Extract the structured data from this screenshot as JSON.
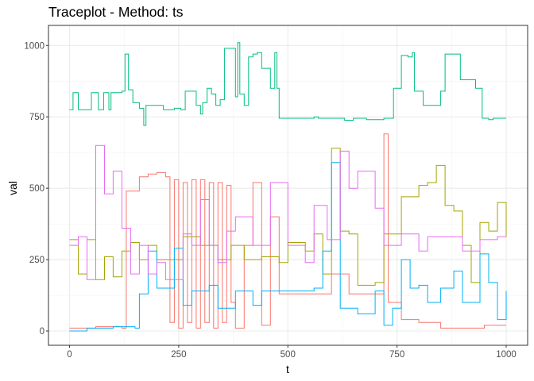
{
  "chart_data": {
    "type": "line",
    "title": "Traceplot - Method: ts",
    "xlabel": "t",
    "ylabel": "val",
    "xlim": [
      -45,
      1045
    ],
    "ylim": [
      -35,
      1060
    ],
    "xticks": [
      0,
      250,
      500,
      750,
      1000
    ],
    "yticks": [
      0,
      250,
      500,
      750,
      1000
    ],
    "grid": true,
    "legend": "none",
    "step": true,
    "series": [
      {
        "color": "#F8766D",
        "points": [
          [
            0,
            10
          ],
          [
            60,
            15
          ],
          [
            120,
            10
          ],
          [
            130,
            490
          ],
          [
            160,
            540
          ],
          [
            180,
            550
          ],
          [
            200,
            555
          ],
          [
            220,
            540
          ],
          [
            230,
            30
          ],
          [
            240,
            530
          ],
          [
            250,
            10
          ],
          [
            260,
            520
          ],
          [
            270,
            30
          ],
          [
            280,
            530
          ],
          [
            290,
            10
          ],
          [
            300,
            530
          ],
          [
            310,
            30
          ],
          [
            320,
            520
          ],
          [
            330,
            10
          ],
          [
            340,
            520
          ],
          [
            350,
            30
          ],
          [
            360,
            510
          ],
          [
            370,
            100
          ],
          [
            380,
            10
          ],
          [
            400,
            300
          ],
          [
            420,
            520
          ],
          [
            440,
            20
          ],
          [
            460,
            400
          ],
          [
            480,
            130
          ],
          [
            520,
            130
          ],
          [
            560,
            130
          ],
          [
            600,
            200
          ],
          [
            640,
            130
          ],
          [
            700,
            130
          ],
          [
            720,
            690
          ],
          [
            730,
            100
          ],
          [
            760,
            40
          ],
          [
            800,
            30
          ],
          [
            850,
            10
          ],
          [
            900,
            10
          ],
          [
            950,
            20
          ],
          [
            1000,
            20
          ]
        ]
      },
      {
        "color": "#A3A500",
        "points": [
          [
            0,
            320
          ],
          [
            20,
            200
          ],
          [
            40,
            320
          ],
          [
            60,
            180
          ],
          [
            80,
            260
          ],
          [
            100,
            190
          ],
          [
            120,
            280
          ],
          [
            140,
            310
          ],
          [
            160,
            250
          ],
          [
            180,
            300
          ],
          [
            200,
            250
          ],
          [
            260,
            330
          ],
          [
            300,
            300
          ],
          [
            340,
            250
          ],
          [
            370,
            300
          ],
          [
            400,
            250
          ],
          [
            440,
            260
          ],
          [
            480,
            240
          ],
          [
            500,
            310
          ],
          [
            540,
            280
          ],
          [
            560,
            340
          ],
          [
            580,
            200
          ],
          [
            600,
            640
          ],
          [
            620,
            350
          ],
          [
            640,
            340
          ],
          [
            660,
            160
          ],
          [
            700,
            170
          ],
          [
            720,
            340
          ],
          [
            760,
            470
          ],
          [
            800,
            510
          ],
          [
            820,
            520
          ],
          [
            840,
            580
          ],
          [
            860,
            440
          ],
          [
            880,
            420
          ],
          [
            900,
            300
          ],
          [
            920,
            170
          ],
          [
            940,
            380
          ],
          [
            960,
            350
          ],
          [
            980,
            450
          ],
          [
            1000,
            330
          ]
        ]
      },
      {
        "color": "#00BF7D",
        "points": [
          [
            0,
            775
          ],
          [
            8,
            835
          ],
          [
            20,
            775
          ],
          [
            38,
            775
          ],
          [
            50,
            835
          ],
          [
            66,
            775
          ],
          [
            78,
            835
          ],
          [
            90,
            775
          ],
          [
            95,
            835
          ],
          [
            110,
            835
          ],
          [
            120,
            840
          ],
          [
            127,
            970
          ],
          [
            135,
            845
          ],
          [
            145,
            800
          ],
          [
            160,
            780
          ],
          [
            170,
            720
          ],
          [
            175,
            790
          ],
          [
            190,
            790
          ],
          [
            215,
            775
          ],
          [
            240,
            780
          ],
          [
            255,
            775
          ],
          [
            265,
            840
          ],
          [
            280,
            840
          ],
          [
            290,
            790
          ],
          [
            300,
            760
          ],
          [
            305,
            800
          ],
          [
            315,
            850
          ],
          [
            325,
            830
          ],
          [
            335,
            790
          ],
          [
            345,
            810
          ],
          [
            355,
            990
          ],
          [
            370,
            990
          ],
          [
            380,
            820
          ],
          [
            385,
            1010
          ],
          [
            390,
            830
          ],
          [
            400,
            790
          ],
          [
            410,
            960
          ],
          [
            420,
            970
          ],
          [
            430,
            975
          ],
          [
            440,
            920
          ],
          [
            450,
            920
          ],
          [
            460,
            850
          ],
          [
            470,
            975
          ],
          [
            475,
            850
          ],
          [
            480,
            745
          ],
          [
            510,
            745
          ],
          [
            550,
            745
          ],
          [
            560,
            750
          ],
          [
            570,
            745
          ],
          [
            615,
            745
          ],
          [
            630,
            738
          ],
          [
            650,
            745
          ],
          [
            680,
            740
          ],
          [
            720,
            745
          ],
          [
            742,
            850
          ],
          [
            760,
            965
          ],
          [
            775,
            960
          ],
          [
            785,
            975
          ],
          [
            790,
            840
          ],
          [
            805,
            840
          ],
          [
            810,
            790
          ],
          [
            840,
            790
          ],
          [
            850,
            840
          ],
          [
            860,
            970
          ],
          [
            880,
            970
          ],
          [
            895,
            880
          ],
          [
            915,
            880
          ],
          [
            930,
            850
          ],
          [
            945,
            745
          ],
          [
            960,
            740
          ],
          [
            970,
            745
          ],
          [
            1000,
            745
          ]
        ]
      },
      {
        "color": "#00B0F6",
        "points": [
          [
            0,
            0
          ],
          [
            40,
            10
          ],
          [
            100,
            15
          ],
          [
            150,
            10
          ],
          [
            160,
            130
          ],
          [
            180,
            280
          ],
          [
            200,
            150
          ],
          [
            220,
            150
          ],
          [
            240,
            290
          ],
          [
            260,
            90
          ],
          [
            280,
            140
          ],
          [
            300,
            140
          ],
          [
            320,
            160
          ],
          [
            340,
            80
          ],
          [
            380,
            140
          ],
          [
            420,
            90
          ],
          [
            440,
            140
          ],
          [
            500,
            140
          ],
          [
            560,
            150
          ],
          [
            580,
            280
          ],
          [
            600,
            590
          ],
          [
            620,
            80
          ],
          [
            660,
            60
          ],
          [
            700,
            140
          ],
          [
            720,
            20
          ],
          [
            740,
            80
          ],
          [
            760,
            250
          ],
          [
            780,
            150
          ],
          [
            800,
            160
          ],
          [
            820,
            100
          ],
          [
            850,
            150
          ],
          [
            880,
            210
          ],
          [
            900,
            100
          ],
          [
            940,
            270
          ],
          [
            960,
            170
          ],
          [
            980,
            40
          ],
          [
            1000,
            140
          ]
        ]
      },
      {
        "color": "#E76BF3",
        "points": [
          [
            0,
            300
          ],
          [
            20,
            330
          ],
          [
            40,
            180
          ],
          [
            60,
            650
          ],
          [
            80,
            480
          ],
          [
            100,
            560
          ],
          [
            120,
            360
          ],
          [
            140,
            200
          ],
          [
            160,
            300
          ],
          [
            180,
            200
          ],
          [
            200,
            240
          ],
          [
            220,
            180
          ],
          [
            260,
            340
          ],
          [
            280,
            300
          ],
          [
            300,
            460
          ],
          [
            320,
            300
          ],
          [
            340,
            240
          ],
          [
            360,
            350
          ],
          [
            380,
            400
          ],
          [
            420,
            300
          ],
          [
            460,
            520
          ],
          [
            500,
            300
          ],
          [
            540,
            240
          ],
          [
            560,
            440
          ],
          [
            590,
            320
          ],
          [
            620,
            630
          ],
          [
            640,
            500
          ],
          [
            660,
            560
          ],
          [
            700,
            430
          ],
          [
            720,
            300
          ],
          [
            760,
            340
          ],
          [
            800,
            280
          ],
          [
            820,
            330
          ],
          [
            860,
            330
          ],
          [
            900,
            280
          ],
          [
            940,
            320
          ],
          [
            980,
            330
          ],
          [
            1000,
            330
          ]
        ]
      }
    ]
  }
}
